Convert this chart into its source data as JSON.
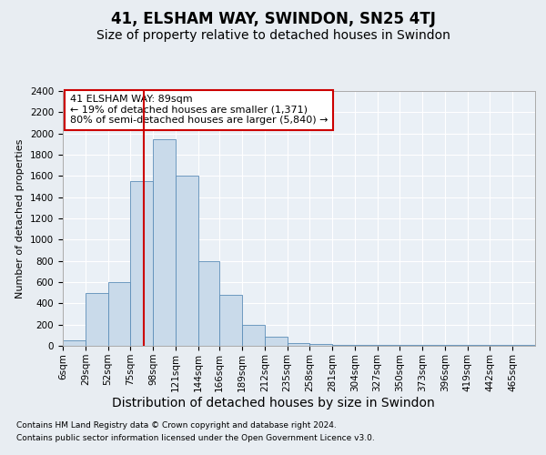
{
  "title": "41, ELSHAM WAY, SWINDON, SN25 4TJ",
  "subtitle": "Size of property relative to detached houses in Swindon",
  "xlabel": "Distribution of detached houses by size in Swindon",
  "ylabel": "Number of detached properties",
  "footnote1": "Contains HM Land Registry data © Crown copyright and database right 2024.",
  "footnote2": "Contains public sector information licensed under the Open Government Licence v3.0.",
  "annotation_title": "41 ELSHAM WAY: 89sqm",
  "annotation_line1": "← 19% of detached houses are smaller (1,371)",
  "annotation_line2": "80% of semi-detached houses are larger (5,840) →",
  "bar_color": "#c9daea",
  "bar_edge_color": "#5b8db8",
  "red_line_x": 89,
  "red_line_color": "#cc0000",
  "categories": [
    "6sqm",
    "29sqm",
    "52sqm",
    "75sqm",
    "98sqm",
    "121sqm",
    "144sqm",
    "166sqm",
    "189sqm",
    "212sqm",
    "235sqm",
    "258sqm",
    "281sqm",
    "304sqm",
    "327sqm",
    "350sqm",
    "373sqm",
    "396sqm",
    "419sqm",
    "442sqm",
    "465sqm"
  ],
  "bar_values": [
    50,
    500,
    600,
    1550,
    1950,
    1600,
    800,
    480,
    200,
    90,
    30,
    20,
    10,
    5,
    5,
    5,
    5,
    5,
    5,
    5,
    5
  ],
  "bin_edges": [
    6,
    29,
    52,
    75,
    98,
    121,
    144,
    166,
    189,
    212,
    235,
    258,
    281,
    304,
    327,
    350,
    373,
    396,
    419,
    442,
    465,
    488
  ],
  "ylim": [
    0,
    2400
  ],
  "yticks": [
    0,
    200,
    400,
    600,
    800,
    1000,
    1200,
    1400,
    1600,
    1800,
    2000,
    2200,
    2400
  ],
  "bg_color": "#e8edf2",
  "plot_bg_color": "#eaf0f6",
  "grid_color": "#ffffff",
  "title_fontsize": 12,
  "subtitle_fontsize": 10,
  "ylabel_fontsize": 8,
  "xlabel_fontsize": 10,
  "tick_fontsize": 7.5,
  "footnote_fontsize": 6.5,
  "annotation_box_color": "#ffffff",
  "annotation_box_edge": "#cc0000",
  "annotation_fontsize": 8
}
